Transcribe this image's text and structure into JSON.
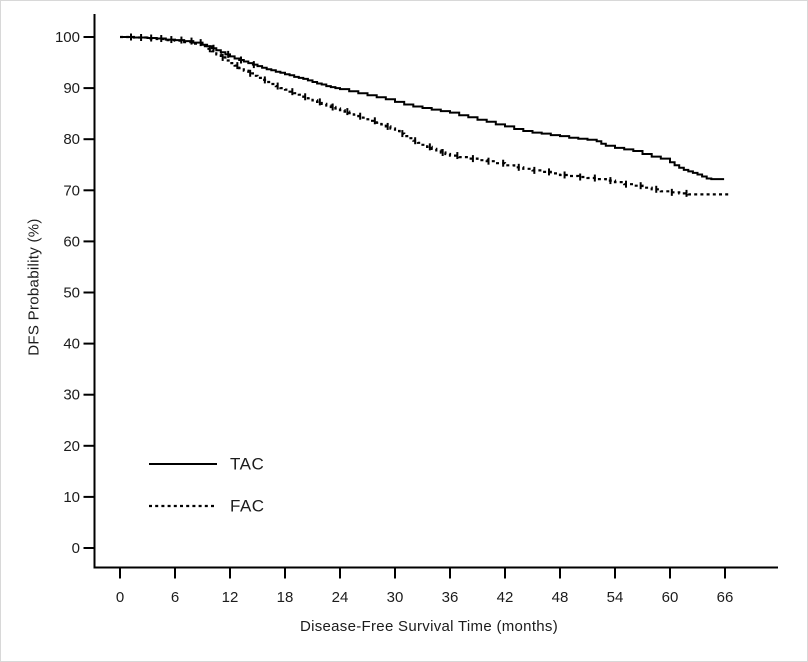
{
  "figure": {
    "background": "#ffffff",
    "frame_color": "#d8d8d8",
    "axis_color": "#000000",
    "text_color": "#1c1c1c"
  },
  "chart_data": {
    "type": "line",
    "subtype": "kaplan-meier-step",
    "title": "",
    "xlabel": "Disease-Free Survival Time (months)",
    "ylabel": "DFS Probability (%)",
    "xlim": [
      0,
      66
    ],
    "ylim": [
      0,
      100
    ],
    "x_ticks": [
      0,
      6,
      12,
      18,
      24,
      30,
      36,
      42,
      48,
      54,
      60,
      66
    ],
    "y_ticks": [
      0,
      10,
      20,
      30,
      40,
      50,
      60,
      70,
      80,
      90,
      100
    ],
    "grid": false,
    "legend_position": "inside-lower-left",
    "series": [
      {
        "name": "TAC",
        "line_style": "solid",
        "color": "#000000",
        "points": [
          [
            0,
            100
          ],
          [
            1.5,
            99.9
          ],
          [
            3,
            99.8
          ],
          [
            4,
            99.7
          ],
          [
            5,
            99.5
          ],
          [
            6,
            99.4
          ],
          [
            7,
            99.2
          ],
          [
            8,
            98.9
          ],
          [
            9,
            98.5
          ],
          [
            9.5,
            98.2
          ],
          [
            10,
            97.8
          ],
          [
            10.5,
            97.4
          ],
          [
            11,
            97.0
          ],
          [
            11.5,
            96.6
          ],
          [
            12,
            96.2
          ],
          [
            12.5,
            95.8
          ],
          [
            13,
            95.5
          ],
          [
            13.5,
            95.2
          ],
          [
            14,
            94.9
          ],
          [
            14.5,
            94.6
          ],
          [
            15,
            94.3
          ],
          [
            15.5,
            94.0
          ],
          [
            16,
            93.7
          ],
          [
            16.5,
            93.5
          ],
          [
            17,
            93.2
          ],
          [
            17.5,
            93.0
          ],
          [
            18,
            92.7
          ],
          [
            18.5,
            92.5
          ],
          [
            19,
            92.2
          ],
          [
            19.5,
            92.0
          ],
          [
            20,
            91.8
          ],
          [
            20.5,
            91.5
          ],
          [
            21,
            91.2
          ],
          [
            21.5,
            90.9
          ],
          [
            22,
            90.7
          ],
          [
            22.5,
            90.4
          ],
          [
            23,
            90.2
          ],
          [
            23.5,
            90.0
          ],
          [
            24,
            89.8
          ],
          [
            25,
            89.4
          ],
          [
            26,
            89.0
          ],
          [
            27,
            88.6
          ],
          [
            28,
            88.2
          ],
          [
            29,
            87.8
          ],
          [
            30,
            87.3
          ],
          [
            31,
            86.8
          ],
          [
            32,
            86.4
          ],
          [
            33,
            86.1
          ],
          [
            34,
            85.8
          ],
          [
            35,
            85.5
          ],
          [
            36,
            85.2
          ],
          [
            37,
            84.7
          ],
          [
            38,
            84.3
          ],
          [
            39,
            83.8
          ],
          [
            40,
            83.4
          ],
          [
            41,
            82.9
          ],
          [
            42,
            82.5
          ],
          [
            43,
            82.0
          ],
          [
            44,
            81.6
          ],
          [
            45,
            81.3
          ],
          [
            46,
            81.1
          ],
          [
            47,
            80.8
          ],
          [
            48,
            80.6
          ],
          [
            49,
            80.3
          ],
          [
            50,
            80.1
          ],
          [
            51,
            79.9
          ],
          [
            52,
            79.6
          ],
          [
            52.5,
            79.1
          ],
          [
            53,
            78.7
          ],
          [
            54,
            78.3
          ],
          [
            55,
            78.0
          ],
          [
            56,
            77.7
          ],
          [
            57,
            77.1
          ],
          [
            58,
            76.6
          ],
          [
            59,
            76.2
          ],
          [
            60,
            75.5
          ],
          [
            60.5,
            74.9
          ],
          [
            61,
            74.4
          ],
          [
            61.5,
            74.0
          ],
          [
            62,
            73.7
          ],
          [
            62.5,
            73.4
          ],
          [
            63,
            73.1
          ],
          [
            63.5,
            72.7
          ],
          [
            64,
            72.3
          ],
          [
            64.5,
            72.2
          ],
          [
            65.9,
            72.2
          ]
        ],
        "censor_marks_months": [
          1.2,
          2.3,
          3.4,
          4.5,
          5.6,
          6.7,
          7.8,
          8.8,
          10.2,
          11.8,
          13.2,
          14.6
        ]
      },
      {
        "name": "FAC",
        "line_style": "dotted",
        "color": "#000000",
        "points": [
          [
            0,
            100
          ],
          [
            1.5,
            99.9
          ],
          [
            3,
            99.7
          ],
          [
            4,
            99.6
          ],
          [
            5,
            99.4
          ],
          [
            6,
            99.3
          ],
          [
            7,
            99.0
          ],
          [
            8,
            98.7
          ],
          [
            9,
            98.2
          ],
          [
            9.5,
            97.7
          ],
          [
            10,
            97.2
          ],
          [
            10.5,
            96.6
          ],
          [
            11,
            96.0
          ],
          [
            11.5,
            95.4
          ],
          [
            12,
            94.9
          ],
          [
            12.5,
            94.4
          ],
          [
            13,
            93.9
          ],
          [
            13.5,
            93.4
          ],
          [
            14,
            92.9
          ],
          [
            14.5,
            92.4
          ],
          [
            15,
            92.0
          ],
          [
            15.5,
            91.6
          ],
          [
            16,
            91.2
          ],
          [
            16.5,
            90.8
          ],
          [
            17,
            90.4
          ],
          [
            17.5,
            90.0
          ],
          [
            18,
            89.7
          ],
          [
            18.5,
            89.3
          ],
          [
            19,
            89.0
          ],
          [
            19.5,
            88.7
          ],
          [
            20,
            88.3
          ],
          [
            20.5,
            88.0
          ],
          [
            21,
            87.6
          ],
          [
            21.5,
            87.3
          ],
          [
            22,
            86.9
          ],
          [
            22.5,
            86.6
          ],
          [
            23,
            86.3
          ],
          [
            23.5,
            86.0
          ],
          [
            24,
            85.7
          ],
          [
            24.5,
            85.4
          ],
          [
            25,
            85.1
          ],
          [
            25.5,
            84.8
          ],
          [
            26,
            84.5
          ],
          [
            26.5,
            84.2
          ],
          [
            27,
            83.9
          ],
          [
            27.5,
            83.6
          ],
          [
            28,
            83.2
          ],
          [
            28.5,
            82.9
          ],
          [
            29,
            82.5
          ],
          [
            29.5,
            82.1
          ],
          [
            30,
            81.6
          ],
          [
            30.5,
            81.1
          ],
          [
            31,
            80.6
          ],
          [
            31.5,
            80.2
          ],
          [
            32,
            79.7
          ],
          [
            32.5,
            79.3
          ],
          [
            33,
            78.9
          ],
          [
            33.5,
            78.5
          ],
          [
            34,
            78.1
          ],
          [
            34.5,
            77.8
          ],
          [
            35,
            77.4
          ],
          [
            35.5,
            77.1
          ],
          [
            36,
            76.8
          ],
          [
            37,
            76.5
          ],
          [
            38,
            76.2
          ],
          [
            39,
            75.9
          ],
          [
            40,
            75.7
          ],
          [
            41,
            75.3
          ],
          [
            42,
            74.9
          ],
          [
            43,
            74.5
          ],
          [
            44,
            74.2
          ],
          [
            45,
            73.9
          ],
          [
            46,
            73.6
          ],
          [
            47,
            73.3
          ],
          [
            48,
            73.0
          ],
          [
            49,
            72.8
          ],
          [
            50,
            72.6
          ],
          [
            51,
            72.4
          ],
          [
            52,
            72.2
          ],
          [
            53,
            71.9
          ],
          [
            54,
            71.6
          ],
          [
            55,
            71.2
          ],
          [
            56,
            70.9
          ],
          [
            57,
            70.5
          ],
          [
            58,
            70.2
          ],
          [
            59,
            69.8
          ],
          [
            60,
            69.6
          ],
          [
            61,
            69.4
          ],
          [
            62,
            69.2
          ],
          [
            66.5,
            69.2
          ]
        ],
        "censor_marks_months": [
          9.8,
          11.2,
          12.8,
          14.2,
          15.8,
          17.2,
          18.8,
          20.2,
          21.8,
          23.2,
          24.8,
          26.2,
          27.8,
          29.2,
          30.8,
          32.2,
          33.8,
          35.2,
          36.8,
          38.5,
          40.2,
          41.8,
          43.5,
          45.2,
          46.8,
          48.5,
          50.2,
          51.8,
          53.5,
          55.2,
          56.8,
          58.5,
          60.2,
          61.8
        ]
      }
    ]
  },
  "legend": {
    "items": [
      {
        "label": "TAC",
        "line_style": "solid"
      },
      {
        "label": "FAC",
        "line_style": "dotted"
      }
    ]
  }
}
